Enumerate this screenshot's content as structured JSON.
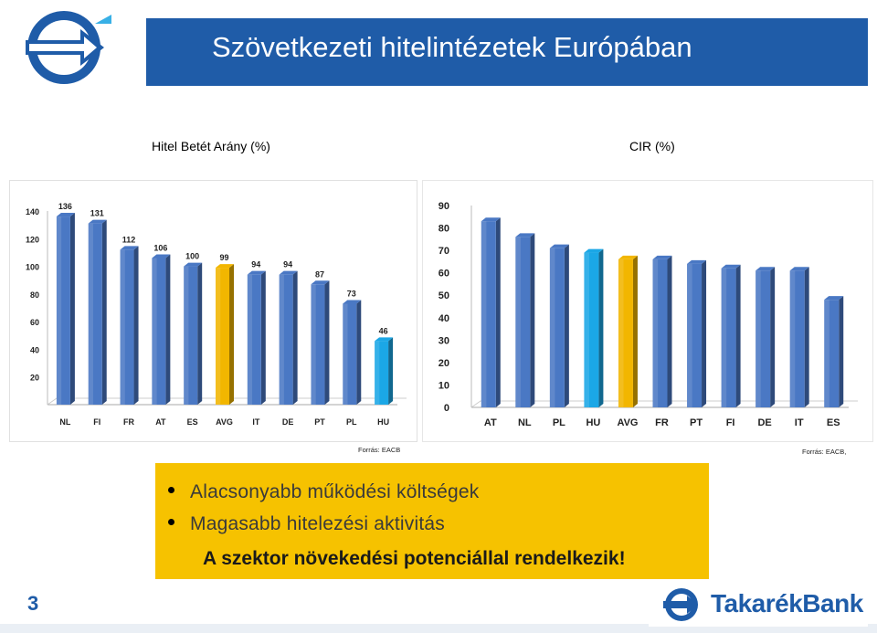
{
  "header": {
    "title": "Szövetkezeti hitelintézetek Európában",
    "bar_color": "#1f5ca8"
  },
  "left_chart_label": "Hitel Betét Arány (%)",
  "right_chart_label": "CIR (%)",
  "left_source": "Forrás: EACB",
  "right_source": "Forrás: EACB,",
  "callout": {
    "bullets": [
      "Alacsonyabb működési költségek",
      "Magasabb hitelezési aktivitás"
    ],
    "conclusion": "A szektor növekedési potenciállal rendelkezik!"
  },
  "page_number": "3",
  "footer": {
    "bank_name_left": "Takarék",
    "bank_name_right": "Bank"
  },
  "chart_data": [
    {
      "type": "bar",
      "categories": [
        "NL",
        "FI",
        "FR",
        "AT",
        "ES",
        "AVG",
        "IT",
        "DE",
        "PT",
        "PL",
        "HU"
      ],
      "values": [
        136,
        131,
        112,
        106,
        100,
        99,
        94,
        94,
        87,
        73,
        46
      ],
      "data_labels": [
        "136",
        "131",
        "112",
        "106",
        "100",
        "99",
        "94",
        "94",
        "87",
        "73",
        "46"
      ],
      "ylim": [
        0,
        140
      ],
      "yticks": [
        "20",
        "40",
        "60",
        "80",
        "100",
        "120",
        "140"
      ],
      "colors": {
        "default": "#4a78c4",
        "AVG": "#f2b600",
        "HU": "#1ba7e6"
      }
    },
    {
      "type": "bar",
      "categories": [
        "AT",
        "NL",
        "PL",
        "HU",
        "AVG",
        "FR",
        "PT",
        "FI",
        "DE",
        "IT",
        "ES"
      ],
      "values": [
        83,
        76,
        71,
        69,
        66,
        66,
        64,
        62,
        61,
        61,
        48
      ],
      "ylim": [
        0,
        90
      ],
      "yticks": [
        "0",
        "10",
        "20",
        "30",
        "40",
        "50",
        "60",
        "70",
        "80",
        "90"
      ],
      "colors": {
        "default": "#4a78c4",
        "AVG": "#f2b600",
        "HU": "#1ba7e6"
      }
    }
  ]
}
